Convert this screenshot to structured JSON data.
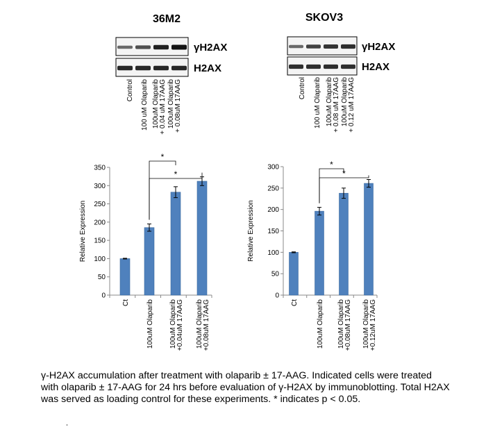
{
  "figure": {
    "colors": {
      "bar": "#4f81bd",
      "bar_edge": "#3b6aa0",
      "axis": "#888888",
      "ink": "#000000"
    },
    "panels": [
      {
        "cell_line": "36M2",
        "blot_labels": [
          "γH2AX",
          "H2AX"
        ],
        "lane_labels": [
          [
            "Control"
          ],
          [
            "100 uM Olaparib"
          ],
          [
            "100uM Olaparib",
            "+ 0.04 uM 17AAG"
          ],
          [
            "100uM Olaparib",
            "+ 0.08uM 17AAG"
          ]
        ],
        "band_intensity_gh2ax": [
          0.35,
          0.55,
          0.9,
          1.0
        ],
        "band_intensity_h2ax": [
          0.85,
          0.85,
          0.85,
          0.85
        ],
        "chart_data": {
          "type": "bar",
          "categories": [
            [
              "Ct"
            ],
            [
              "100uM Olaparib"
            ],
            [
              "100uM Olaparib",
              "+0.04uM 17AAG"
            ],
            [
              "100uM Olaparib",
              "+0.08uM 17AAG"
            ]
          ],
          "values": [
            100,
            185,
            282,
            312
          ],
          "errors": [
            1,
            10,
            15,
            12
          ],
          "ylabel": "Relative Expression",
          "ylim": [
            0,
            350
          ],
          "yticks": [
            0,
            50,
            100,
            150,
            200,
            250,
            300,
            350
          ],
          "significance": [
            {
              "from": 1,
              "to": 2,
              "label": "*"
            },
            {
              "from": 1,
              "to": 3,
              "label": "*"
            }
          ]
        }
      },
      {
        "cell_line": "SKOV3",
        "blot_labels": [
          "γH2AX",
          "H2AX"
        ],
        "lane_labels": [
          [
            "Control"
          ],
          [
            "100 uM Olaparib"
          ],
          [
            "100uM Olaparib",
            "+ 0.08 uM 17AAG"
          ],
          [
            "100uM Olaparib",
            "+ 0.12 uM 17AAG"
          ]
        ],
        "band_intensity_gh2ax": [
          0.35,
          0.65,
          0.75,
          0.8
        ],
        "band_intensity_h2ax": [
          0.8,
          0.8,
          0.8,
          0.8
        ],
        "chart_data": {
          "type": "bar",
          "categories": [
            [
              "Ct"
            ],
            [
              "100uM Olaparib"
            ],
            [
              "100uM Olaparib",
              "+0.08uM 17AAG"
            ],
            [
              "100uM Olaparib",
              "+0.12uM 17AAG"
            ]
          ],
          "values": [
            100,
            196,
            238,
            261
          ],
          "errors": [
            1,
            9,
            12,
            9
          ],
          "ylabel": "Relative Expression",
          "ylim": [
            0,
            300
          ],
          "yticks": [
            0,
            50,
            100,
            150,
            200,
            250,
            300
          ],
          "significance": [
            {
              "from": 1,
              "to": 2,
              "label": "*"
            },
            {
              "from": 1,
              "to": 3,
              "label": "*"
            }
          ]
        }
      }
    ],
    "caption": "γ-H2AX accumulation after treatment with olaparib ± 17-AAG. Indicated cells were treated with olaparib ± 17-AAG for 24 hrs before evaluation of γ-H2AX by immunoblotting. Total H2AX was served as loading control for these experiments. * indicates p < 0.05."
  }
}
